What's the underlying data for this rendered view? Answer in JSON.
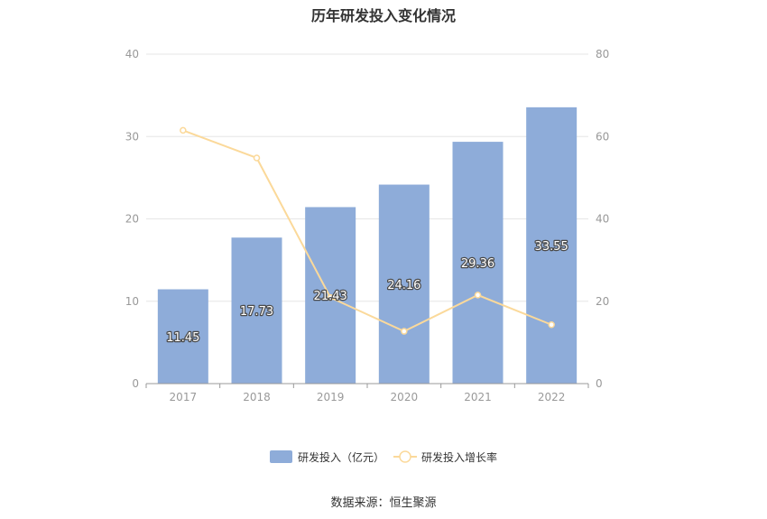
{
  "chart_data": {
    "type": "bar",
    "title": "历年研发投入变化情况",
    "categories": [
      "2017",
      "2018",
      "2019",
      "2020",
      "2021",
      "2022"
    ],
    "series": [
      {
        "name": "研发投入（亿元）",
        "type": "bar",
        "axis": "left",
        "color": "#8eacd9",
        "values": [
          11.45,
          17.73,
          21.43,
          24.16,
          29.36,
          33.55
        ]
      },
      {
        "name": "研发投入增长率",
        "type": "line",
        "axis": "right",
        "color": "#fbd99a",
        "values": [
          61.5,
          54.8,
          20.9,
          12.7,
          21.5,
          14.3
        ]
      }
    ],
    "y_left": {
      "min": 0,
      "max": 40,
      "ticks": [
        0,
        10,
        20,
        30,
        40
      ]
    },
    "y_right": {
      "min": 0,
      "max": 80,
      "ticks": [
        0,
        20,
        40,
        60,
        80
      ]
    },
    "grid": true,
    "legend_position": "bottom"
  },
  "source": "数据来源：恒生聚源"
}
